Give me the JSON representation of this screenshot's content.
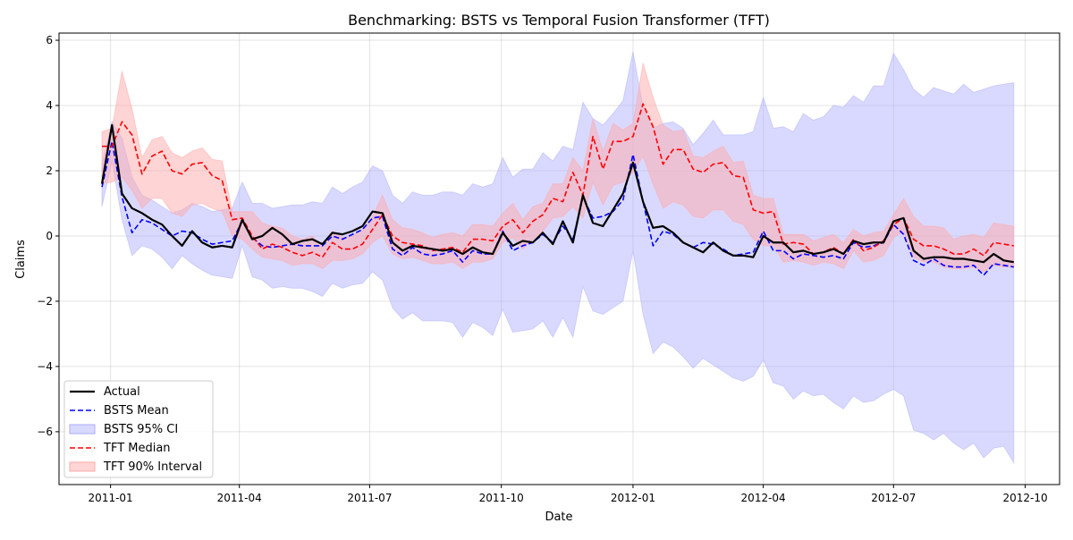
{
  "chart_data": {
    "type": "line",
    "title": "Benchmarking: BSTS vs Temporal Fusion Transformer (TFT)",
    "xlabel": "Date",
    "ylabel": "Claims",
    "x_start": "2010-12-26",
    "x_step_days": 7,
    "xlim": [
      "2010-11-26",
      "2012-10-25"
    ],
    "ylim": [
      -7.62,
      6.22
    ],
    "grid": true,
    "legend_position": "lower-left",
    "x_ticks": [
      {
        "date": "2011-01-01",
        "label": "2011-01"
      },
      {
        "date": "2011-04-01",
        "label": "2011-04"
      },
      {
        "date": "2011-07-01",
        "label": "2011-07"
      },
      {
        "date": "2011-10-01",
        "label": "2011-10"
      },
      {
        "date": "2012-01-01",
        "label": "2012-01"
      },
      {
        "date": "2012-04-01",
        "label": "2012-04"
      },
      {
        "date": "2012-07-01",
        "label": "2012-07"
      },
      {
        "date": "2012-10-01",
        "label": "2012-10"
      }
    ],
    "y_ticks": [
      {
        "value": 6,
        "label": "6"
      },
      {
        "value": 4,
        "label": "4"
      },
      {
        "value": 2,
        "label": "2"
      },
      {
        "value": 0,
        "label": "0"
      },
      {
        "value": -2,
        "label": "−2"
      },
      {
        "value": -4,
        "label": "−4"
      },
      {
        "value": -6,
        "label": "−6"
      }
    ],
    "legend": [
      "Actual",
      "BSTS Mean",
      "BSTS 95% CI",
      "TFT Median",
      "TFT 90% Interval"
    ],
    "colors": {
      "actual": "#000000",
      "bsts": "#0000ff",
      "bsts_band": "#aaaaff",
      "tft": "#ff0000",
      "tft_band": "#ffaaaa"
    },
    "series": {
      "actual": [
        1.6,
        3.4,
        1.3,
        0.85,
        0.7,
        0.5,
        0.35,
        0.0,
        -0.3,
        0.15,
        -0.2,
        -0.35,
        -0.3,
        -0.35,
        0.5,
        -0.1,
        0.0,
        0.25,
        0.05,
        -0.25,
        -0.15,
        -0.1,
        -0.25,
        0.1,
        0.05,
        0.15,
        0.3,
        0.75,
        0.7,
        -0.2,
        -0.45,
        -0.3,
        -0.35,
        -0.4,
        -0.45,
        -0.4,
        -0.55,
        -0.35,
        -0.5,
        -0.55,
        0.1,
        -0.3,
        -0.15,
        -0.2,
        0.1,
        -0.25,
        0.45,
        -0.2,
        1.25,
        0.4,
        0.3,
        0.8,
        1.3,
        2.25,
        1.05,
        0.25,
        0.3,
        0.1,
        -0.2,
        -0.35,
        -0.5,
        -0.2,
        -0.45,
        -0.6,
        -0.6,
        -0.65,
        0.0,
        -0.2,
        -0.2,
        -0.5,
        -0.45,
        -0.55,
        -0.5,
        -0.4,
        -0.55,
        -0.15,
        -0.25,
        -0.2,
        -0.2,
        0.45,
        0.55,
        -0.45,
        -0.7,
        -0.65,
        -0.65,
        -0.7,
        -0.7,
        -0.75,
        -0.8,
        -0.55,
        -0.75,
        -0.8
      ],
      "bsts_mean": [
        1.5,
        2.9,
        1.2,
        0.1,
        0.5,
        0.4,
        0.2,
        0.0,
        0.15,
        0.1,
        -0.1,
        -0.25,
        -0.2,
        -0.15,
        0.45,
        -0.05,
        -0.3,
        -0.35,
        -0.3,
        -0.25,
        -0.3,
        -0.3,
        -0.3,
        0.0,
        -0.1,
        0.05,
        0.2,
        0.55,
        0.6,
        -0.4,
        -0.6,
        -0.35,
        -0.55,
        -0.6,
        -0.55,
        -0.45,
        -0.8,
        -0.45,
        -0.55,
        -0.55,
        0.15,
        -0.45,
        -0.3,
        -0.2,
        0.05,
        -0.2,
        0.3,
        -0.1,
        1.2,
        0.55,
        0.6,
        0.75,
        1.1,
        2.5,
        1.05,
        -0.3,
        0.15,
        0.05,
        -0.2,
        -0.35,
        -0.2,
        -0.25,
        -0.4,
        -0.6,
        -0.55,
        -0.5,
        0.15,
        -0.45,
        -0.45,
        -0.7,
        -0.55,
        -0.6,
        -0.65,
        -0.6,
        -0.7,
        -0.2,
        -0.35,
        -0.3,
        -0.2,
        0.35,
        0.05,
        -0.75,
        -0.9,
        -0.7,
        -0.9,
        -0.95,
        -0.95,
        -0.9,
        -1.2,
        -0.85,
        -0.9,
        -0.95
      ],
      "bsts_lower": [
        0.9,
        2.3,
        0.5,
        -0.6,
        -0.3,
        -0.4,
        -0.65,
        -1.0,
        -0.6,
        -0.85,
        -1.05,
        -1.2,
        -1.25,
        -1.3,
        -0.3,
        -1.25,
        -1.35,
        -1.6,
        -1.55,
        -1.6,
        -1.6,
        -1.7,
        -1.85,
        -1.45,
        -1.6,
        -1.5,
        -1.45,
        -1.1,
        -1.35,
        -2.2,
        -2.55,
        -2.35,
        -2.6,
        -2.6,
        -2.6,
        -2.65,
        -3.1,
        -2.65,
        -2.8,
        -3.05,
        -2.25,
        -2.95,
        -2.9,
        -2.85,
        -2.6,
        -3.1,
        -2.5,
        -3.1,
        -1.55,
        -2.3,
        -2.4,
        -2.2,
        -2.0,
        -0.45,
        -2.4,
        -3.6,
        -3.25,
        -3.4,
        -3.7,
        -4.05,
        -3.75,
        -3.95,
        -4.15,
        -4.35,
        -4.45,
        -4.3,
        -3.8,
        -4.5,
        -4.6,
        -5.0,
        -4.75,
        -4.9,
        -4.85,
        -5.1,
        -5.3,
        -4.9,
        -5.1,
        -5.05,
        -4.85,
        -4.7,
        -4.9,
        -5.95,
        -6.05,
        -6.25,
        -6.05,
        -6.35,
        -6.55,
        -6.35,
        -6.8,
        -6.5,
        -6.45,
        -6.95
      ],
      "bsts_upper": [
        2.2,
        3.5,
        3.0,
        1.8,
        1.25,
        1.1,
        0.9,
        0.7,
        0.8,
        1.0,
        0.9,
        0.75,
        0.8,
        0.85,
        1.65,
        1.0,
        1.0,
        0.85,
        0.9,
        0.95,
        0.95,
        1.05,
        1.0,
        1.5,
        1.3,
        1.5,
        1.65,
        2.15,
        2.0,
        1.25,
        1.0,
        1.35,
        1.25,
        1.25,
        1.35,
        1.35,
        1.25,
        1.6,
        1.5,
        1.6,
        2.4,
        1.8,
        2.05,
        2.05,
        2.55,
        2.3,
        2.75,
        2.65,
        4.1,
        3.6,
        3.4,
        3.75,
        4.15,
        5.65,
        3.95,
        3.3,
        3.45,
        3.5,
        3.3,
        2.8,
        3.15,
        3.55,
        3.1,
        3.1,
        3.1,
        3.2,
        4.25,
        3.3,
        3.35,
        3.2,
        3.75,
        3.55,
        3.65,
        4.0,
        3.95,
        4.3,
        4.1,
        4.6,
        4.6,
        5.6,
        5.1,
        4.5,
        4.25,
        4.55,
        4.45,
        4.35,
        4.65,
        4.4,
        4.5,
        4.6,
        4.65,
        4.7
      ],
      "tft_median": [
        2.75,
        2.75,
        3.5,
        3.1,
        1.9,
        2.45,
        2.6,
        2.0,
        1.9,
        2.2,
        2.25,
        1.85,
        1.7,
        0.5,
        0.55,
        0.0,
        -0.4,
        -0.25,
        -0.35,
        -0.5,
        -0.6,
        -0.5,
        -0.65,
        -0.2,
        -0.4,
        -0.4,
        -0.25,
        0.2,
        0.65,
        0.0,
        -0.2,
        -0.25,
        -0.3,
        -0.45,
        -0.4,
        -0.35,
        -0.5,
        -0.1,
        -0.1,
        -0.15,
        0.3,
        0.5,
        0.1,
        0.45,
        0.65,
        1.15,
        1.05,
        1.95,
        1.25,
        3.05,
        2.05,
        2.9,
        2.9,
        3.05,
        4.05,
        3.35,
        2.2,
        2.65,
        2.65,
        2.05,
        1.95,
        2.2,
        2.25,
        1.85,
        1.8,
        0.8,
        0.7,
        0.75,
        -0.25,
        -0.2,
        -0.25,
        -0.55,
        -0.5,
        -0.35,
        -0.55,
        -0.1,
        -0.45,
        -0.35,
        -0.15,
        0.35,
        0.55,
        -0.1,
        -0.3,
        -0.3,
        -0.4,
        -0.55,
        -0.55,
        -0.4,
        -0.6,
        -0.2,
        -0.25,
        -0.3
      ],
      "tft_lower": [
        1.6,
        1.65,
        1.8,
        1.4,
        0.85,
        1.15,
        1.15,
        0.7,
        0.6,
        0.95,
        1.0,
        0.85,
        0.75,
        0.0,
        -0.1,
        -0.4,
        -0.65,
        -0.7,
        -0.75,
        -0.9,
        -0.85,
        -0.85,
        -1.0,
        -0.75,
        -0.75,
        -0.7,
        -0.55,
        -0.2,
        0.0,
        -0.55,
        -0.7,
        -0.65,
        -0.75,
        -0.85,
        -0.85,
        -0.8,
        -1.0,
        -0.8,
        -0.8,
        -0.7,
        -0.2,
        -0.05,
        -0.4,
        -0.1,
        0.15,
        0.55,
        0.6,
        0.9,
        0.55,
        1.65,
        0.95,
        1.55,
        1.65,
        1.95,
        2.45,
        1.6,
        0.85,
        1.05,
        0.95,
        0.6,
        0.55,
        0.8,
        0.8,
        0.45,
        0.35,
        -0.1,
        -0.3,
        -0.3,
        -0.8,
        -0.75,
        -0.8,
        -0.9,
        -0.8,
        -0.85,
        -1.0,
        -0.45,
        -0.8,
        -0.75,
        -0.6,
        -0.05,
        0.15,
        -0.65,
        -0.8,
        -0.8,
        -0.95,
        -1.0,
        -1.0,
        -0.95,
        -1.1,
        -0.9,
        -0.95,
        -0.95
      ],
      "tft_upper": [
        3.2,
        3.3,
        5.05,
        3.9,
        2.4,
        2.95,
        3.05,
        2.55,
        2.4,
        2.6,
        2.7,
        2.35,
        2.3,
        0.75,
        0.75,
        0.75,
        0.4,
        0.3,
        0.25,
        0.0,
        -0.1,
        0.0,
        -0.3,
        0.15,
        -0.05,
        0.0,
        0.2,
        0.6,
        1.25,
        0.5,
        0.25,
        0.2,
        0.1,
        -0.05,
        0.05,
        0.1,
        0.0,
        0.35,
        0.35,
        0.3,
        0.7,
        1.0,
        0.5,
        0.9,
        1.0,
        1.6,
        1.6,
        2.4,
        2.0,
        3.6,
        2.6,
        3.45,
        3.25,
        3.45,
        5.3,
        4.25,
        3.4,
        3.2,
        3.25,
        2.45,
        2.4,
        2.6,
        2.75,
        2.25,
        2.3,
        1.25,
        1.15,
        1.15,
        0.05,
        0.05,
        0.05,
        -0.15,
        -0.05,
        0.05,
        -0.2,
        0.2,
        0.0,
        0.1,
        0.15,
        0.65,
        1.15,
        0.6,
        0.3,
        0.3,
        0.25,
        -0.1,
        0.0,
        0.05,
        -0.05,
        0.4,
        0.35,
        0.3
      ]
    }
  }
}
